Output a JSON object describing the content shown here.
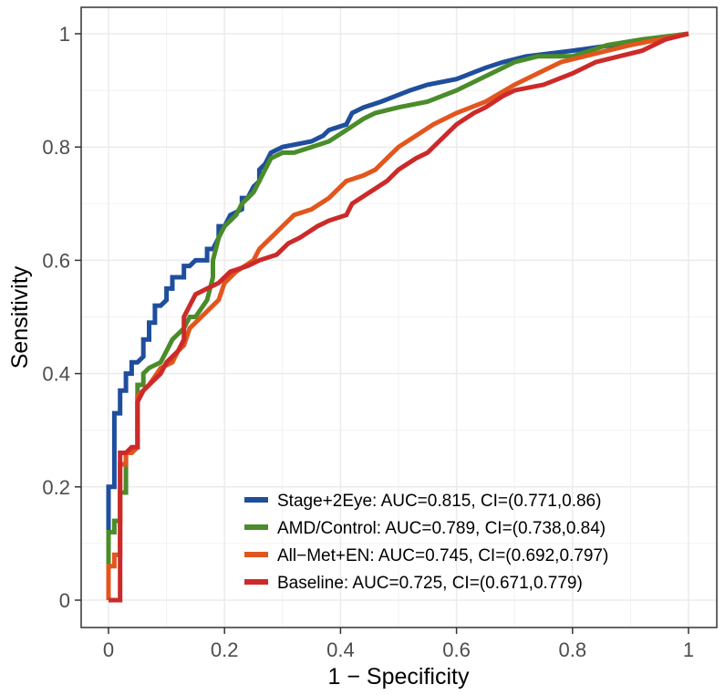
{
  "chart_data": {
    "type": "line",
    "title": "",
    "xlabel": "1 − Specificity",
    "ylabel": "Sensitivity",
    "xlim": [
      0,
      1
    ],
    "ylim": [
      0,
      1
    ],
    "xticks": [
      0,
      0.2,
      0.4,
      0.6,
      0.8,
      1
    ],
    "xtick_labels": [
      "0",
      "0.2",
      "0.4",
      "0.6",
      "0.8",
      "1"
    ],
    "yticks": [
      0,
      0.2,
      0.4,
      0.6,
      0.8,
      1
    ],
    "ytick_labels": [
      "0",
      "0.2",
      "0.4",
      "0.6",
      "0.8",
      "1"
    ],
    "grid": true,
    "legend_position": "bottom-right",
    "series": [
      {
        "name": "Stage+2Eye",
        "label": "Stage+2Eye: AUC=0.815, CI=(0.771,0.86)",
        "color": "#1f4e9c",
        "points": [
          [
            0,
            0
          ],
          [
            0,
            0.2
          ],
          [
            0.01,
            0.2
          ],
          [
            0.01,
            0.33
          ],
          [
            0.02,
            0.33
          ],
          [
            0.02,
            0.37
          ],
          [
            0.03,
            0.37
          ],
          [
            0.03,
            0.4
          ],
          [
            0.04,
            0.4
          ],
          [
            0.04,
            0.42
          ],
          [
            0.05,
            0.42
          ],
          [
            0.06,
            0.43
          ],
          [
            0.06,
            0.46
          ],
          [
            0.07,
            0.46
          ],
          [
            0.07,
            0.49
          ],
          [
            0.08,
            0.49
          ],
          [
            0.08,
            0.52
          ],
          [
            0.09,
            0.52
          ],
          [
            0.1,
            0.53
          ],
          [
            0.1,
            0.55
          ],
          [
            0.11,
            0.55
          ],
          [
            0.11,
            0.57
          ],
          [
            0.12,
            0.57
          ],
          [
            0.13,
            0.57
          ],
          [
            0.13,
            0.59
          ],
          [
            0.14,
            0.59
          ],
          [
            0.15,
            0.6
          ],
          [
            0.17,
            0.6
          ],
          [
            0.17,
            0.62
          ],
          [
            0.18,
            0.62
          ],
          [
            0.19,
            0.64
          ],
          [
            0.19,
            0.66
          ],
          [
            0.2,
            0.66
          ],
          [
            0.21,
            0.68
          ],
          [
            0.23,
            0.69
          ],
          [
            0.23,
            0.71
          ],
          [
            0.24,
            0.71
          ],
          [
            0.25,
            0.73
          ],
          [
            0.26,
            0.74
          ],
          [
            0.26,
            0.76
          ],
          [
            0.27,
            0.77
          ],
          [
            0.28,
            0.79
          ],
          [
            0.3,
            0.8
          ],
          [
            0.35,
            0.81
          ],
          [
            0.37,
            0.82
          ],
          [
            0.38,
            0.83
          ],
          [
            0.41,
            0.84
          ],
          [
            0.42,
            0.86
          ],
          [
            0.44,
            0.87
          ],
          [
            0.47,
            0.88
          ],
          [
            0.52,
            0.9
          ],
          [
            0.55,
            0.91
          ],
          [
            0.6,
            0.92
          ],
          [
            0.65,
            0.94
          ],
          [
            0.68,
            0.95
          ],
          [
            0.72,
            0.96
          ],
          [
            0.8,
            0.97
          ],
          [
            0.87,
            0.98
          ],
          [
            0.93,
            0.99
          ],
          [
            1,
            1
          ]
        ]
      },
      {
        "name": "AMD/Control",
        "label": "AMD/Control: AUC=0.789, CI=(0.738,0.84)",
        "color": "#4a8c2a",
        "points": [
          [
            0,
            0.06
          ],
          [
            0,
            0.12
          ],
          [
            0.01,
            0.12
          ],
          [
            0.01,
            0.14
          ],
          [
            0.02,
            0.14
          ],
          [
            0.02,
            0.19
          ],
          [
            0.03,
            0.19
          ],
          [
            0.03,
            0.26
          ],
          [
            0.04,
            0.26
          ],
          [
            0.05,
            0.27
          ],
          [
            0.05,
            0.38
          ],
          [
            0.06,
            0.38
          ],
          [
            0.06,
            0.4
          ],
          [
            0.07,
            0.41
          ],
          [
            0.09,
            0.42
          ],
          [
            0.1,
            0.44
          ],
          [
            0.11,
            0.46
          ],
          [
            0.12,
            0.47
          ],
          [
            0.13,
            0.48
          ],
          [
            0.14,
            0.5
          ],
          [
            0.15,
            0.5
          ],
          [
            0.17,
            0.53
          ],
          [
            0.18,
            0.57
          ],
          [
            0.18,
            0.6
          ],
          [
            0.19,
            0.64
          ],
          [
            0.2,
            0.66
          ],
          [
            0.22,
            0.68
          ],
          [
            0.23,
            0.7
          ],
          [
            0.25,
            0.72
          ],
          [
            0.26,
            0.74
          ],
          [
            0.27,
            0.76
          ],
          [
            0.28,
            0.78
          ],
          [
            0.3,
            0.79
          ],
          [
            0.32,
            0.79
          ],
          [
            0.35,
            0.8
          ],
          [
            0.38,
            0.81
          ],
          [
            0.41,
            0.83
          ],
          [
            0.44,
            0.85
          ],
          [
            0.46,
            0.86
          ],
          [
            0.5,
            0.87
          ],
          [
            0.55,
            0.88
          ],
          [
            0.6,
            0.9
          ],
          [
            0.66,
            0.93
          ],
          [
            0.7,
            0.95
          ],
          [
            0.74,
            0.96
          ],
          [
            0.8,
            0.96
          ],
          [
            0.86,
            0.98
          ],
          [
            0.92,
            0.99
          ],
          [
            1,
            1
          ]
        ]
      },
      {
        "name": "All-Met+EN",
        "label": "All−Met+EN: AUC=0.745, CI=(0.692,0.797)",
        "color": "#e2561e",
        "points": [
          [
            0,
            0
          ],
          [
            0,
            0.06
          ],
          [
            0.01,
            0.06
          ],
          [
            0.01,
            0.08
          ],
          [
            0.02,
            0.08
          ],
          [
            0.02,
            0.24
          ],
          [
            0.03,
            0.24
          ],
          [
            0.03,
            0.26
          ],
          [
            0.04,
            0.26
          ],
          [
            0.05,
            0.27
          ],
          [
            0.05,
            0.36
          ],
          [
            0.06,
            0.37
          ],
          [
            0.07,
            0.38
          ],
          [
            0.09,
            0.41
          ],
          [
            0.11,
            0.42
          ],
          [
            0.12,
            0.44
          ],
          [
            0.13,
            0.45
          ],
          [
            0.14,
            0.48
          ],
          [
            0.15,
            0.49
          ],
          [
            0.16,
            0.5
          ],
          [
            0.18,
            0.52
          ],
          [
            0.19,
            0.53
          ],
          [
            0.2,
            0.56
          ],
          [
            0.22,
            0.58
          ],
          [
            0.25,
            0.6
          ],
          [
            0.26,
            0.62
          ],
          [
            0.28,
            0.64
          ],
          [
            0.3,
            0.66
          ],
          [
            0.32,
            0.68
          ],
          [
            0.35,
            0.69
          ],
          [
            0.38,
            0.71
          ],
          [
            0.41,
            0.74
          ],
          [
            0.44,
            0.75
          ],
          [
            0.46,
            0.76
          ],
          [
            0.48,
            0.78
          ],
          [
            0.5,
            0.8
          ],
          [
            0.53,
            0.82
          ],
          [
            0.56,
            0.84
          ],
          [
            0.6,
            0.86
          ],
          [
            0.65,
            0.88
          ],
          [
            0.7,
            0.91
          ],
          [
            0.74,
            0.93
          ],
          [
            0.78,
            0.95
          ],
          [
            0.82,
            0.96
          ],
          [
            0.86,
            0.97
          ],
          [
            0.9,
            0.98
          ],
          [
            0.95,
            0.99
          ],
          [
            1,
            1
          ]
        ]
      },
      {
        "name": "Baseline",
        "label": "Baseline: AUC=0.725, CI=(0.671,0.779)",
        "color": "#cc2a2a",
        "points": [
          [
            0,
            0
          ],
          [
            0.02,
            0
          ],
          [
            0.02,
            0.2
          ],
          [
            0.02,
            0.26
          ],
          [
            0.03,
            0.26
          ],
          [
            0.04,
            0.27
          ],
          [
            0.05,
            0.27
          ],
          [
            0.05,
            0.35
          ],
          [
            0.06,
            0.37
          ],
          [
            0.07,
            0.38
          ],
          [
            0.09,
            0.4
          ],
          [
            0.1,
            0.42
          ],
          [
            0.12,
            0.44
          ],
          [
            0.13,
            0.46
          ],
          [
            0.13,
            0.5
          ],
          [
            0.14,
            0.52
          ],
          [
            0.15,
            0.54
          ],
          [
            0.17,
            0.55
          ],
          [
            0.19,
            0.56
          ],
          [
            0.21,
            0.58
          ],
          [
            0.24,
            0.59
          ],
          [
            0.26,
            0.6
          ],
          [
            0.29,
            0.61
          ],
          [
            0.31,
            0.63
          ],
          [
            0.33,
            0.64
          ],
          [
            0.36,
            0.66
          ],
          [
            0.38,
            0.67
          ],
          [
            0.41,
            0.68
          ],
          [
            0.42,
            0.7
          ],
          [
            0.45,
            0.72
          ],
          [
            0.48,
            0.74
          ],
          [
            0.5,
            0.76
          ],
          [
            0.53,
            0.78
          ],
          [
            0.55,
            0.79
          ],
          [
            0.57,
            0.81
          ],
          [
            0.6,
            0.84
          ],
          [
            0.63,
            0.86
          ],
          [
            0.65,
            0.87
          ],
          [
            0.68,
            0.89
          ],
          [
            0.7,
            0.9
          ],
          [
            0.75,
            0.91
          ],
          [
            0.8,
            0.93
          ],
          [
            0.84,
            0.95
          ],
          [
            0.88,
            0.96
          ],
          [
            0.92,
            0.97
          ],
          [
            0.96,
            0.99
          ],
          [
            1,
            1
          ]
        ]
      }
    ]
  }
}
